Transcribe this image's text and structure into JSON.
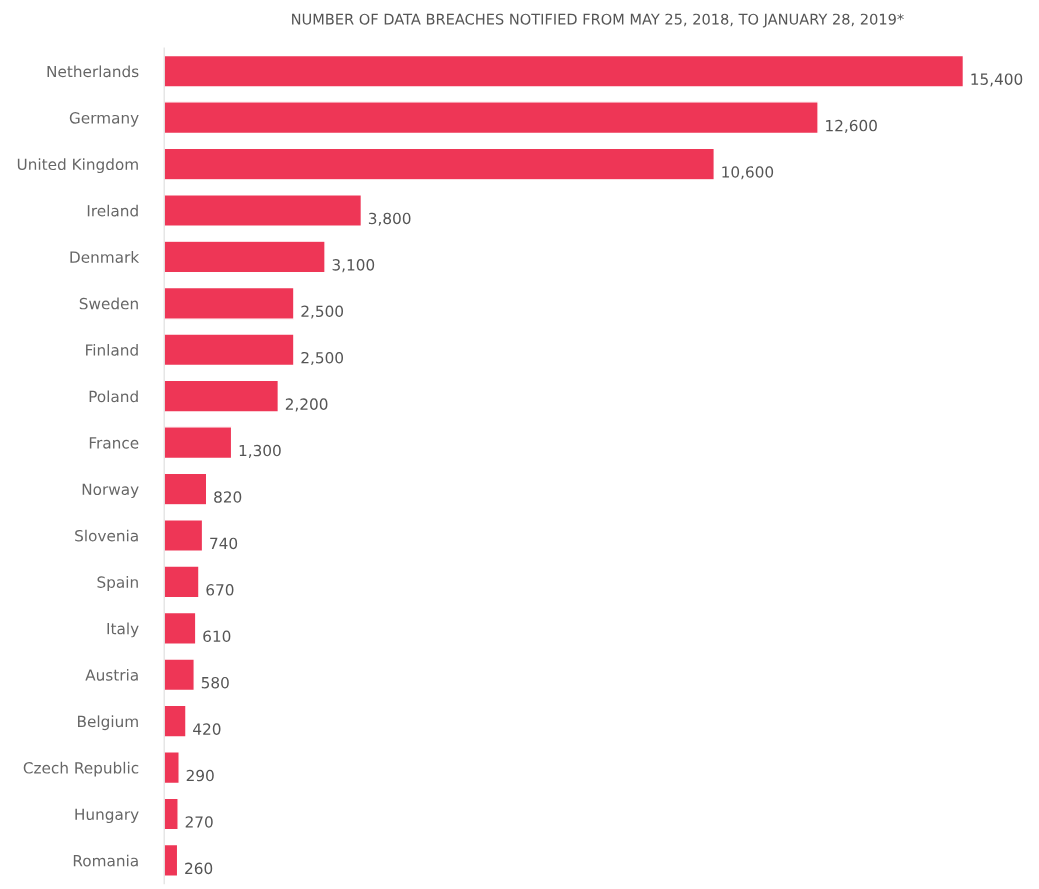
{
  "chart_data": {
    "type": "bar",
    "orientation": "horizontal",
    "title": "NUMBER OF DATA BREACHES NOTIFIED FROM MAY 25, 2018, TO JANUARY 28, 2019*",
    "categories": [
      "Netherlands",
      "Germany",
      "United Kingdom",
      "Ireland",
      "Denmark",
      "Sweden",
      "Finland",
      "Poland",
      "France",
      "Norway",
      "Slovenia",
      "Spain",
      "Italy",
      "Austria",
      "Belgium",
      "Czech Republic",
      "Hungary",
      "Romania"
    ],
    "values": [
      15400,
      12600,
      10600,
      3800,
      3100,
      2500,
      2500,
      2200,
      1300,
      820,
      740,
      670,
      610,
      580,
      420,
      290,
      270,
      260
    ],
    "value_labels": [
      "15,400",
      "12,600",
      "10,600",
      "3,800",
      "3,100",
      "2,500",
      "2,500",
      "2,200",
      "1,300",
      "820",
      "740",
      "670",
      "610",
      "580",
      "420",
      "290",
      "270",
      "260"
    ],
    "color": "#ee3656",
    "grid": false,
    "legend": false
  }
}
